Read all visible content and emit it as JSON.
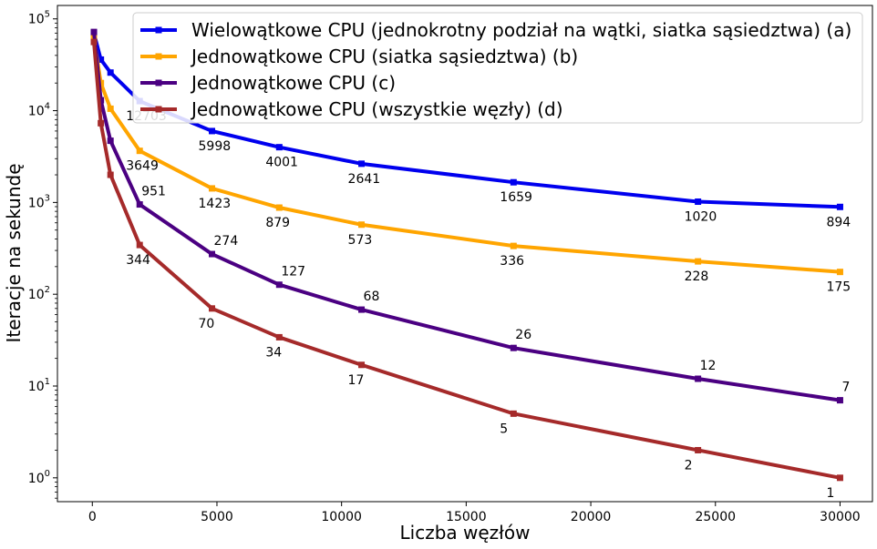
{
  "chart_data": {
    "type": "line",
    "title": "",
    "xlabel": "Liczba węzłów",
    "ylabel": "Iteracje na sekundę",
    "xlim": [
      -1400,
      31300
    ],
    "ylim": [
      0.55,
      140000
    ],
    "yscale": "log",
    "grid": false,
    "legend_position": "top-right",
    "x_ticks": [
      0,
      5000,
      10000,
      15000,
      20000,
      25000,
      30000
    ],
    "x_tick_labels": [
      "0",
      "5000",
      "10000",
      "15000",
      "20000",
      "25000",
      "30000"
    ],
    "y_ticks": [
      1,
      10,
      100,
      1000,
      10000,
      100000
    ],
    "y_tick_labels": [
      {
        "base": "10",
        "exp": "0"
      },
      {
        "base": "10",
        "exp": "1"
      },
      {
        "base": "10",
        "exp": "2"
      },
      {
        "base": "10",
        "exp": "3"
      },
      {
        "base": "10",
        "exp": "4"
      },
      {
        "base": "10",
        "exp": "5"
      }
    ],
    "series": [
      {
        "name": "Wielowątkowe CPU (jednokrotny podział na wątki, siatka sąsiedztwa) (a)",
        "color": "#0000ee",
        "x": [
          64,
          343,
          729,
          1900,
          4800,
          7500,
          10800,
          16900,
          24300,
          30000
        ],
        "y": [
          70000,
          36000,
          26000,
          12703,
          5998,
          4001,
          2641,
          1659,
          1020,
          894
        ],
        "labels": [
          "",
          "",
          "",
          "12703",
          "5998",
          "4001",
          "2641",
          "1659",
          "1020",
          "894"
        ],
        "label_pos": [
          "below",
          "below",
          "below",
          "below",
          "below",
          "below",
          "below",
          "below",
          "below",
          "below"
        ]
      },
      {
        "name": "Jednowątkowe CPU (siatka sąsiedztwa) (b)",
        "color": "#ffa500",
        "x": [
          64,
          343,
          729,
          1900,
          4800,
          7500,
          10800,
          16900,
          24300,
          30000
        ],
        "y": [
          62000,
          20000,
          10500,
          3649,
          1423,
          879,
          573,
          336,
          228,
          175
        ],
        "labels": [
          "",
          "",
          "",
          "3649",
          "1423",
          "879",
          "573",
          "336",
          "228",
          "175"
        ],
        "label_pos": [
          "below",
          "below",
          "below",
          "below",
          "below",
          "below",
          "below",
          "below",
          "below",
          "below"
        ]
      },
      {
        "name": "Jednowątkowe CPU (c)",
        "color": "#4b0082",
        "x": [
          64,
          343,
          729,
          1900,
          4800,
          7500,
          10800,
          16900,
          24300,
          30000
        ],
        "y": [
          72000,
          13000,
          4700,
          951,
          274,
          127,
          68,
          26,
          12,
          7
        ],
        "labels": [
          "",
          "",
          "",
          "951",
          "274",
          "127",
          "68",
          "26",
          "12",
          "7"
        ],
        "label_pos": [
          "above",
          "above",
          "above",
          "above",
          "above",
          "above",
          "above",
          "above",
          "above",
          "above"
        ]
      },
      {
        "name": "Jednowątkowe CPU (wszystkie węzły) (d)",
        "color": "#a52a2a",
        "x": [
          64,
          343,
          729,
          1900,
          4800,
          7500,
          10800,
          16900,
          24300,
          30000
        ],
        "y": [
          56000,
          7300,
          2000,
          344,
          70,
          34,
          17,
          5,
          2,
          1
        ],
        "labels": [
          "",
          "",
          "",
          "344",
          "70",
          "34",
          "17",
          "5",
          "2",
          "1"
        ],
        "label_pos": [
          "below",
          "below",
          "below",
          "below",
          "below",
          "below",
          "below",
          "below",
          "below",
          "below"
        ]
      }
    ]
  }
}
